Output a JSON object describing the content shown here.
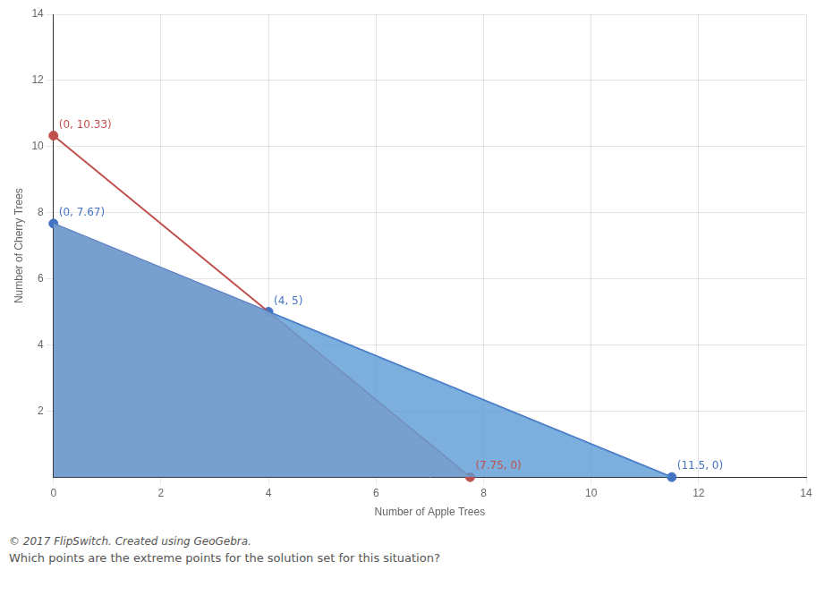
{
  "chart_data": {
    "type": "scatter",
    "xlabel": "Number of Apple Trees",
    "ylabel": "Number of Cherry Trees",
    "xlim": [
      0,
      14
    ],
    "ylim": [
      0,
      14
    ],
    "xticks": [
      0,
      2,
      4,
      6,
      8,
      10,
      12,
      14
    ],
    "yticks": [
      2,
      4,
      6,
      8,
      10,
      12,
      14
    ],
    "grid": true,
    "data_labels": true,
    "series": [
      {
        "type": "area",
        "color": "#5b9bd5",
        "x": [
          0,
          4,
          11.5,
          0
        ],
        "values": [
          7.67,
          5,
          0,
          0
        ]
      },
      {
        "type": "area",
        "color": "#e8a0aa",
        "x": [
          0,
          0,
          4,
          7.75,
          0
        ],
        "values": [
          10.33,
          7.67,
          5,
          0,
          0
        ]
      },
      {
        "type": "line",
        "color": "#4472c4",
        "x": [
          0,
          11.5
        ],
        "values": [
          7.67,
          0
        ]
      },
      {
        "type": "line",
        "color": "#c0504d",
        "x": [
          0,
          7.75
        ],
        "values": [
          10.33,
          0
        ]
      },
      {
        "type": "scatter",
        "color": "#4472c4",
        "x": [
          0,
          4,
          11.5
        ],
        "values": [
          7.67,
          5,
          0
        ],
        "value_labels": [
          "(0, 7.67)",
          "(4, 5)",
          "(11.5, 0)"
        ]
      },
      {
        "type": "scatter",
        "color": "#c0504d",
        "x": [
          0,
          7.75
        ],
        "values": [
          10.33,
          0
        ],
        "value_labels": [
          "(0, 10.33)",
          "(7.75, 0)"
        ]
      }
    ],
    "annotations": [
      "© 2017 FlipSwitch. Created using GeoGebra.",
      "Which points are the extreme points for the solution set for this situation?"
    ]
  }
}
